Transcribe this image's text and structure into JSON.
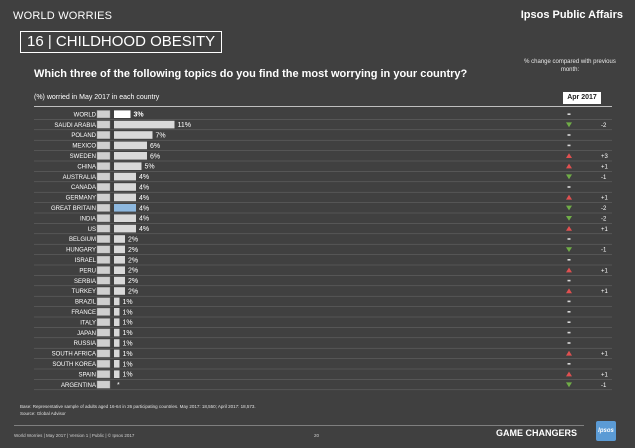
{
  "header": {
    "top_label": "WORLD WORRIES",
    "brand": "Ipsos Public Affairs",
    "title": "16 | CHILDHOOD OBESITY",
    "question": "Which three of the following topics do you find the most worrying in your country?",
    "change_note": "% change compared with previous month:",
    "sub_label": "(%) worried in May 2017 in each country",
    "compare_month": "Apr 2017"
  },
  "chart_data": {
    "type": "bar",
    "orientation": "horizontal",
    "categories": [
      "WORLD",
      "SAUDI ARABIA",
      "POLAND",
      "MEXICO",
      "SWEDEN",
      "CHINA",
      "AUSTRALIA",
      "CANADA",
      "GERMANY",
      "GREAT BRITAIN",
      "INDIA",
      "US",
      "BELGIUM",
      "HUNGARY",
      "ISRAEL",
      "PERU",
      "SERBIA",
      "TURKEY",
      "BRAZIL",
      "FRANCE",
      "ITALY",
      "JAPAN",
      "RUSSIA",
      "SOUTH AFRICA",
      "SOUTH KOREA",
      "SPAIN",
      "ARGENTINA"
    ],
    "values": [
      3,
      11,
      7,
      6,
      6,
      5,
      4,
      4,
      4,
      4,
      4,
      4,
      2,
      2,
      2,
      2,
      2,
      2,
      1,
      1,
      1,
      1,
      1,
      1,
      1,
      1,
      0
    ],
    "value_labels": [
      "3%",
      "11%",
      "7%",
      "6%",
      "6%",
      "5%",
      "4%",
      "4%",
      "4%",
      "4%",
      "4%",
      "4%",
      "2%",
      "2%",
      "2%",
      "2%",
      "2%",
      "2%",
      "1%",
      "1%",
      "1%",
      "1%",
      "1%",
      "1%",
      "1%",
      "1%",
      "*"
    ],
    "highlight": {
      "WORLD": "white",
      "GREAT BRITAIN": "#8db8df"
    },
    "bar_color": "#d9d9d9",
    "change_direction": [
      "flat",
      "down",
      "flat",
      "flat",
      "up",
      "up",
      "down",
      "flat",
      "up",
      "down",
      "down",
      "up",
      "flat",
      "down",
      "flat",
      "up",
      "flat",
      "up",
      "flat",
      "flat",
      "flat",
      "flat",
      "flat",
      "up",
      "flat",
      "up",
      "down"
    ],
    "change_labels": [
      "",
      "-2",
      "",
      "",
      "+3",
      "+1",
      "-1",
      "",
      "+1",
      "-2",
      "-2",
      "+1",
      "",
      "-1",
      "",
      "+1",
      "",
      "+1",
      "",
      "",
      "",
      "",
      "",
      "+1",
      "",
      "+1",
      "-1"
    ],
    "colors": {
      "up": "#e05050",
      "down": "#70ad47",
      "flat": "#d9d9d9"
    }
  },
  "footer": {
    "base": "Base: Representative sample of adults aged 16-64 in 26 participating countries. May 2017: 18,550; April 2017: 18,573.",
    "source": "Source: Global Advisor",
    "left": "World Worries | May 2017 | Version 1 | Public | © Ipsos 2017",
    "page": "20",
    "tagline": "GAME CHANGERS",
    "logo": "Ipsos"
  }
}
